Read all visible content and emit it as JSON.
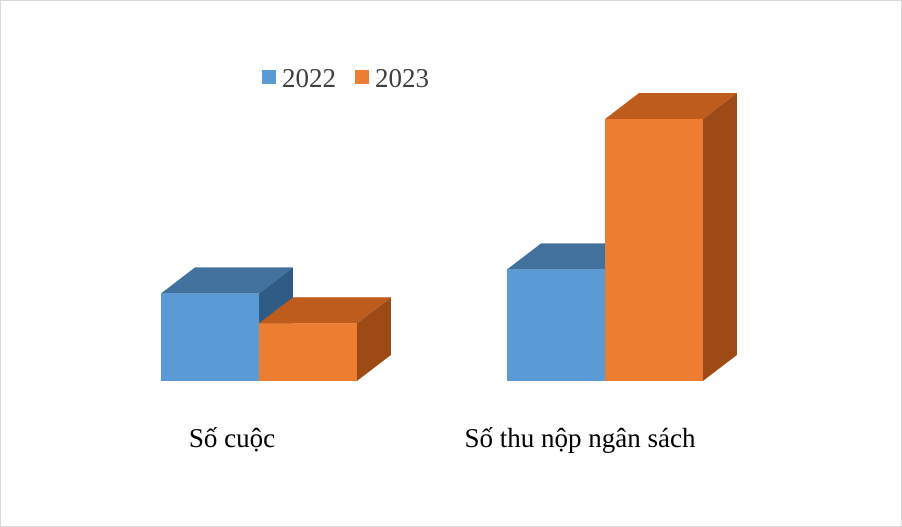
{
  "chart_data": {
    "type": "bar",
    "categories": [
      "Số cuộc",
      "Số thu nộp ngân sách"
    ],
    "series": [
      {
        "name": "2022",
        "values": [
          88,
          112
        ],
        "color": "#5B9BD5",
        "top_color": "#41719C",
        "side_color": "#2E5C85"
      },
      {
        "name": "2023",
        "values": [
          58,
          263
        ],
        "color": "#ED7D31",
        "top_color": "#BE5C1E",
        "side_color": "#9E4A17"
      }
    ],
    "title": "",
    "xlabel": "",
    "ylabel": "",
    "ylim": [
      0,
      263
    ],
    "bar_style": "3d",
    "grid": false,
    "legend_position": "top-left"
  }
}
